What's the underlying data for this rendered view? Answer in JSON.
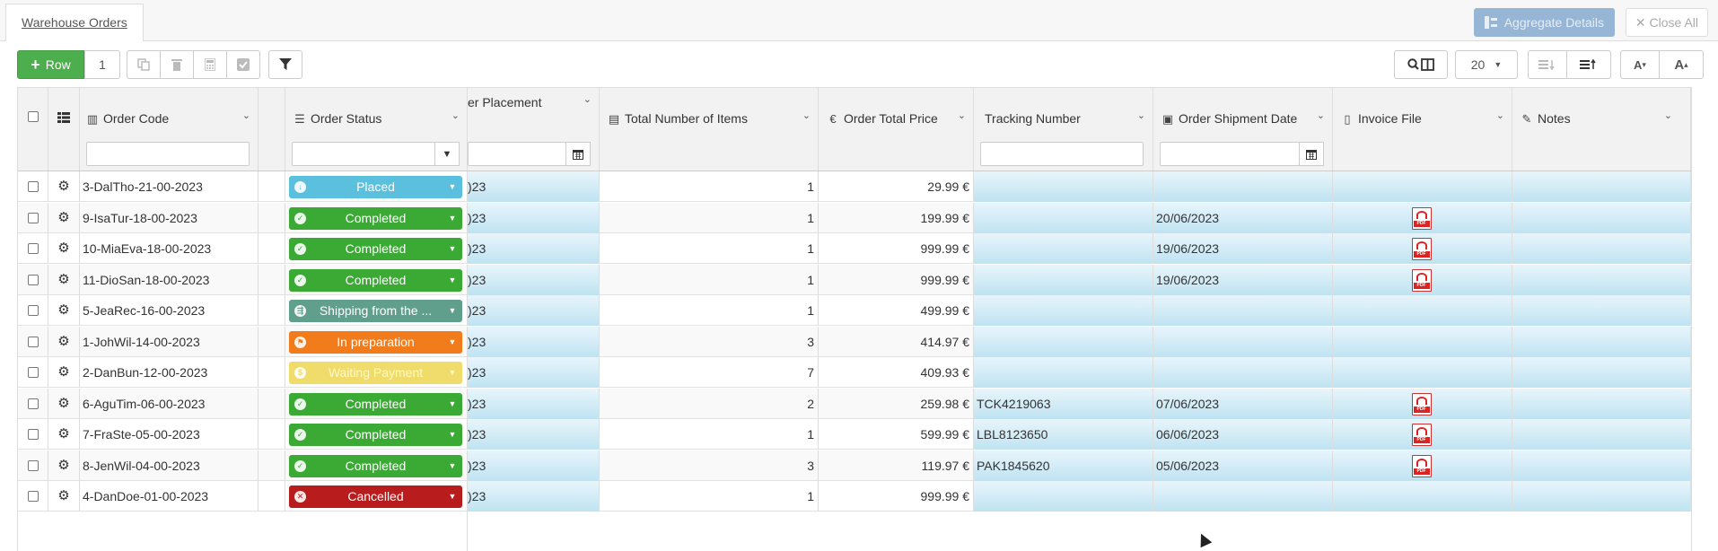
{
  "tabs": [
    {
      "label": "Warehouse Orders"
    }
  ],
  "actions": {
    "aggregate_label": "Aggregate Details",
    "close_all_label": "Close All"
  },
  "toolbar": {
    "add_row_label": "Row",
    "row_count": "1",
    "page_size": "20"
  },
  "columns": {
    "order_code": "Order Code",
    "order_status": "Order Status",
    "order_placement": "er Placement",
    "total_items": "Total Number of Items",
    "total_price": "Order Total Price",
    "tracking": "Tracking Number",
    "shipment_date": "Order Shipment Date",
    "invoice": "Invoice File",
    "notes": "Notes"
  },
  "status_colors": {
    "Placed": "#5bc0de",
    "Completed": "#3aaa35",
    "Shipping": "#5f9f8c",
    "In preparation": "#f27b1c",
    "Waiting Payment": "#f0dc6a",
    "Cancelled": "#b81c1c"
  },
  "rows": [
    {
      "code": "3-DalTho-21-00-2023",
      "status": "Placed",
      "status_key": "Placed",
      "placement": ")23",
      "items": "1",
      "price": "29.99 €",
      "tracking": "",
      "ship": "",
      "pdf": false
    },
    {
      "code": "9-IsaTur-18-00-2023",
      "status": "Completed",
      "status_key": "Completed",
      "placement": ")23",
      "items": "1",
      "price": "199.99 €",
      "tracking": "",
      "ship": "20/06/2023",
      "pdf": true
    },
    {
      "code": "10-MiaEva-18-00-2023",
      "status": "Completed",
      "status_key": "Completed",
      "placement": ")23",
      "items": "1",
      "price": "999.99 €",
      "tracking": "",
      "ship": "19/06/2023",
      "pdf": true
    },
    {
      "code": "11-DioSan-18-00-2023",
      "status": "Completed",
      "status_key": "Completed",
      "placement": ")23",
      "items": "1",
      "price": "999.99 €",
      "tracking": "",
      "ship": "19/06/2023",
      "pdf": true
    },
    {
      "code": "5-JeaRec-16-00-2023",
      "status": "Shipping from the ...",
      "status_key": "Shipping",
      "placement": ")23",
      "items": "1",
      "price": "499.99 €",
      "tracking": "",
      "ship": "",
      "pdf": false
    },
    {
      "code": "1-JohWil-14-00-2023",
      "status": "In preparation",
      "status_key": "In preparation",
      "placement": ")23",
      "items": "3",
      "price": "414.97 €",
      "tracking": "",
      "ship": "",
      "pdf": false
    },
    {
      "code": "2-DanBun-12-00-2023",
      "status": "Waiting Payment",
      "status_key": "Waiting Payment",
      "placement": ")23",
      "items": "7",
      "price": "409.93 €",
      "tracking": "",
      "ship": "",
      "pdf": false
    },
    {
      "code": "6-AguTim-06-00-2023",
      "status": "Completed",
      "status_key": "Completed",
      "placement": ")23",
      "items": "2",
      "price": "259.98 €",
      "tracking": "TCK4219063",
      "ship": "07/06/2023",
      "pdf": true
    },
    {
      "code": "7-FraSte-05-00-2023",
      "status": "Completed",
      "status_key": "Completed",
      "placement": ")23",
      "items": "1",
      "price": "599.99 €",
      "tracking": "LBL8123650",
      "ship": "06/06/2023",
      "pdf": true
    },
    {
      "code": "8-JenWil-04-00-2023",
      "status": "Completed",
      "status_key": "Completed",
      "placement": ")23",
      "items": "3",
      "price": "119.97 €",
      "tracking": "PAK1845620",
      "ship": "05/06/2023",
      "pdf": true
    },
    {
      "code": "4-DanDoe-01-00-2023",
      "status": "Cancelled",
      "status_key": "Cancelled",
      "placement": ")23",
      "items": "1",
      "price": "999.99 €",
      "tracking": "",
      "ship": "",
      "pdf": false
    }
  ]
}
